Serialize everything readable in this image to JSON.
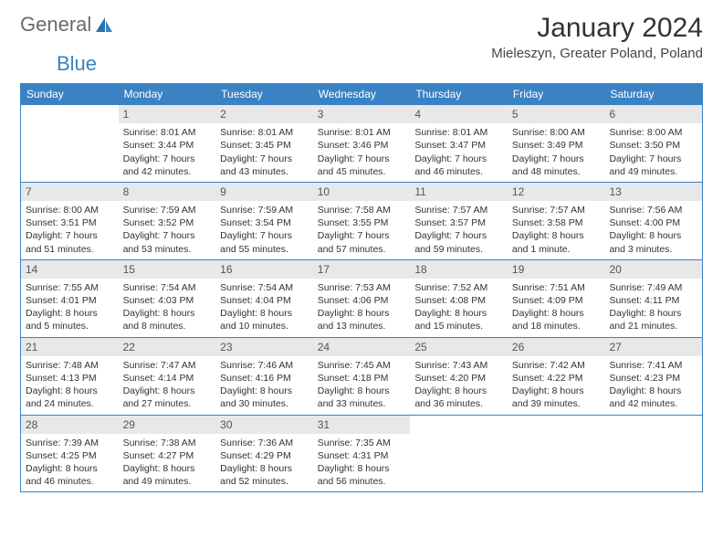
{
  "logo": {
    "part1": "General",
    "part2": "Blue"
  },
  "title": "January 2024",
  "location": "Mieleszyn, Greater Poland, Poland",
  "colors": {
    "header_bg": "#3a82c4",
    "daynum_bg": "#e8e8e8",
    "border": "#3a82c4",
    "text": "#333333",
    "logo_gray": "#6a6a6a",
    "logo_blue": "#3a82c4"
  },
  "weekdays": [
    "Sunday",
    "Monday",
    "Tuesday",
    "Wednesday",
    "Thursday",
    "Friday",
    "Saturday"
  ],
  "weeks": [
    [
      {
        "n": "",
        "lines": []
      },
      {
        "n": "1",
        "lines": [
          "Sunrise: 8:01 AM",
          "Sunset: 3:44 PM",
          "Daylight: 7 hours",
          "and 42 minutes."
        ]
      },
      {
        "n": "2",
        "lines": [
          "Sunrise: 8:01 AM",
          "Sunset: 3:45 PM",
          "Daylight: 7 hours",
          "and 43 minutes."
        ]
      },
      {
        "n": "3",
        "lines": [
          "Sunrise: 8:01 AM",
          "Sunset: 3:46 PM",
          "Daylight: 7 hours",
          "and 45 minutes."
        ]
      },
      {
        "n": "4",
        "lines": [
          "Sunrise: 8:01 AM",
          "Sunset: 3:47 PM",
          "Daylight: 7 hours",
          "and 46 minutes."
        ]
      },
      {
        "n": "5",
        "lines": [
          "Sunrise: 8:00 AM",
          "Sunset: 3:49 PM",
          "Daylight: 7 hours",
          "and 48 minutes."
        ]
      },
      {
        "n": "6",
        "lines": [
          "Sunrise: 8:00 AM",
          "Sunset: 3:50 PM",
          "Daylight: 7 hours",
          "and 49 minutes."
        ]
      }
    ],
    [
      {
        "n": "7",
        "lines": [
          "Sunrise: 8:00 AM",
          "Sunset: 3:51 PM",
          "Daylight: 7 hours",
          "and 51 minutes."
        ]
      },
      {
        "n": "8",
        "lines": [
          "Sunrise: 7:59 AM",
          "Sunset: 3:52 PM",
          "Daylight: 7 hours",
          "and 53 minutes."
        ]
      },
      {
        "n": "9",
        "lines": [
          "Sunrise: 7:59 AM",
          "Sunset: 3:54 PM",
          "Daylight: 7 hours",
          "and 55 minutes."
        ]
      },
      {
        "n": "10",
        "lines": [
          "Sunrise: 7:58 AM",
          "Sunset: 3:55 PM",
          "Daylight: 7 hours",
          "and 57 minutes."
        ]
      },
      {
        "n": "11",
        "lines": [
          "Sunrise: 7:57 AM",
          "Sunset: 3:57 PM",
          "Daylight: 7 hours",
          "and 59 minutes."
        ]
      },
      {
        "n": "12",
        "lines": [
          "Sunrise: 7:57 AM",
          "Sunset: 3:58 PM",
          "Daylight: 8 hours",
          "and 1 minute."
        ]
      },
      {
        "n": "13",
        "lines": [
          "Sunrise: 7:56 AM",
          "Sunset: 4:00 PM",
          "Daylight: 8 hours",
          "and 3 minutes."
        ]
      }
    ],
    [
      {
        "n": "14",
        "lines": [
          "Sunrise: 7:55 AM",
          "Sunset: 4:01 PM",
          "Daylight: 8 hours",
          "and 5 minutes."
        ]
      },
      {
        "n": "15",
        "lines": [
          "Sunrise: 7:54 AM",
          "Sunset: 4:03 PM",
          "Daylight: 8 hours",
          "and 8 minutes."
        ]
      },
      {
        "n": "16",
        "lines": [
          "Sunrise: 7:54 AM",
          "Sunset: 4:04 PM",
          "Daylight: 8 hours",
          "and 10 minutes."
        ]
      },
      {
        "n": "17",
        "lines": [
          "Sunrise: 7:53 AM",
          "Sunset: 4:06 PM",
          "Daylight: 8 hours",
          "and 13 minutes."
        ]
      },
      {
        "n": "18",
        "lines": [
          "Sunrise: 7:52 AM",
          "Sunset: 4:08 PM",
          "Daylight: 8 hours",
          "and 15 minutes."
        ]
      },
      {
        "n": "19",
        "lines": [
          "Sunrise: 7:51 AM",
          "Sunset: 4:09 PM",
          "Daylight: 8 hours",
          "and 18 minutes."
        ]
      },
      {
        "n": "20",
        "lines": [
          "Sunrise: 7:49 AM",
          "Sunset: 4:11 PM",
          "Daylight: 8 hours",
          "and 21 minutes."
        ]
      }
    ],
    [
      {
        "n": "21",
        "lines": [
          "Sunrise: 7:48 AM",
          "Sunset: 4:13 PM",
          "Daylight: 8 hours",
          "and 24 minutes."
        ]
      },
      {
        "n": "22",
        "lines": [
          "Sunrise: 7:47 AM",
          "Sunset: 4:14 PM",
          "Daylight: 8 hours",
          "and 27 minutes."
        ]
      },
      {
        "n": "23",
        "lines": [
          "Sunrise: 7:46 AM",
          "Sunset: 4:16 PM",
          "Daylight: 8 hours",
          "and 30 minutes."
        ]
      },
      {
        "n": "24",
        "lines": [
          "Sunrise: 7:45 AM",
          "Sunset: 4:18 PM",
          "Daylight: 8 hours",
          "and 33 minutes."
        ]
      },
      {
        "n": "25",
        "lines": [
          "Sunrise: 7:43 AM",
          "Sunset: 4:20 PM",
          "Daylight: 8 hours",
          "and 36 minutes."
        ]
      },
      {
        "n": "26",
        "lines": [
          "Sunrise: 7:42 AM",
          "Sunset: 4:22 PM",
          "Daylight: 8 hours",
          "and 39 minutes."
        ]
      },
      {
        "n": "27",
        "lines": [
          "Sunrise: 7:41 AM",
          "Sunset: 4:23 PM",
          "Daylight: 8 hours",
          "and 42 minutes."
        ]
      }
    ],
    [
      {
        "n": "28",
        "lines": [
          "Sunrise: 7:39 AM",
          "Sunset: 4:25 PM",
          "Daylight: 8 hours",
          "and 46 minutes."
        ]
      },
      {
        "n": "29",
        "lines": [
          "Sunrise: 7:38 AM",
          "Sunset: 4:27 PM",
          "Daylight: 8 hours",
          "and 49 minutes."
        ]
      },
      {
        "n": "30",
        "lines": [
          "Sunrise: 7:36 AM",
          "Sunset: 4:29 PM",
          "Daylight: 8 hours",
          "and 52 minutes."
        ]
      },
      {
        "n": "31",
        "lines": [
          "Sunrise: 7:35 AM",
          "Sunset: 4:31 PM",
          "Daylight: 8 hours",
          "and 56 minutes."
        ]
      },
      {
        "n": "",
        "lines": []
      },
      {
        "n": "",
        "lines": []
      },
      {
        "n": "",
        "lines": []
      }
    ]
  ]
}
